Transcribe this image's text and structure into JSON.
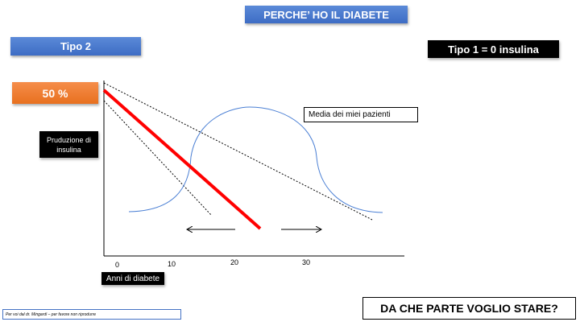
{
  "title": "PERCHE’ HO IL DIABETE",
  "tipo2": "Tipo 2",
  "tipo1": "Tipo 1 = 0 insulina",
  "percent": "50 %",
  "ylabel": "Pruduzione di insulina",
  "xlabel": "Anni di diabete",
  "curve_label": "Media dei miei pazienti",
  "x_ticks": [
    "0",
    "10",
    "20",
    "30"
  ],
  "question": "DA CHE PARTE VOGLIO STARE?",
  "footer": "Per voi dal dr. Mingardi – per favore non riprodurre",
  "colors": {
    "main_line": "#ff0000",
    "curve": "#4a7fd4",
    "title_box": "#4472c4",
    "percent_box": "#ed7d31"
  }
}
